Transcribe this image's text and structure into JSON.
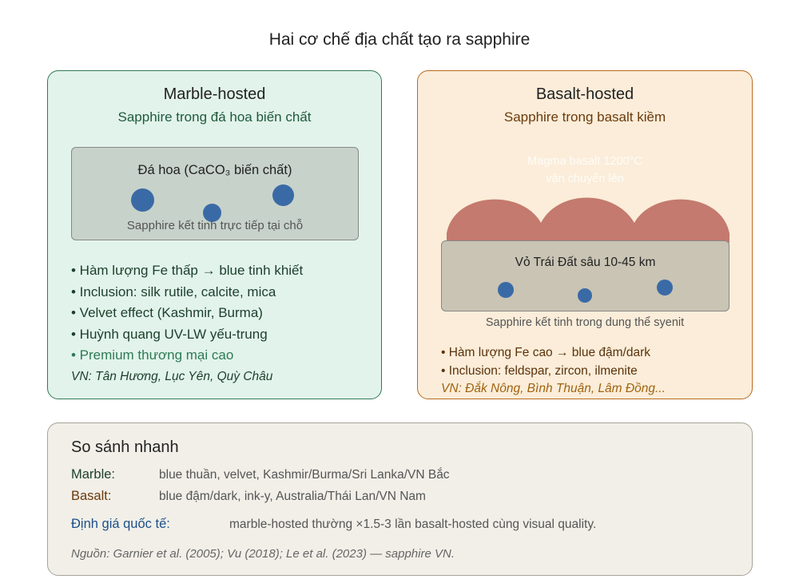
{
  "title": "Hai cơ chế địa chất tạo ra sapphire",
  "marble": {
    "title": "Marble-hosted",
    "subtitle": "Sapphire trong đá hoa biến chất",
    "rock_label": "Đá hoa (CaCO₃ biến chất)",
    "gem_caption": "Sapphire kết tinh trực tiếp tại chỗ",
    "bullets": [
      "• Hàm lượng Fe thấp → blue tinh khiết",
      "• Inclusion: silk rutile, calcite, mica",
      "• Velvet effect (Kashmir, Burma)",
      "• Huỳnh quang UV-LW yếu-trung",
      "• Premium thương mại cao"
    ],
    "locations": "VN: Tân Hương, Lục Yên, Quỳ Châu"
  },
  "basalt": {
    "title": "Basalt-hosted",
    "subtitle": "Sapphire trong basalt kiềm",
    "magma_label_1": "Magma basalt 1200°C",
    "magma_label_2": "vận chuyển lên",
    "rock_label": "Vỏ Trái Đất sâu 10-45 km",
    "gem_caption": "Sapphire kết tinh trong dung thể syenit",
    "bullets": [
      "• Hàm lượng Fe cao → blue đậm/dark",
      "• Inclusion: feldspar, zircon, ilmenite"
    ],
    "locations": "VN: Đắk Nông, Bình Thuận, Lâm Đồng..."
  },
  "compare": {
    "title": "So sánh nhanh",
    "marble_key": "Marble:",
    "marble_value": "blue thuần, velvet, Kashmir/Burma/Sri Lanka/VN Bắc",
    "basalt_key": "Basalt:",
    "basalt_value": "blue đậm/dark, ink-y, Australia/Thái Lan/VN Nam",
    "price_key": "Định giá quốc tế:",
    "price_value": "marble-hosted thường ×1.5-3 lần basalt-hosted cùng visual quality.",
    "source": "Nguồn: Garnier et al. (2005); Vu (2018); Le et al. (2023) — sapphire VN."
  },
  "colors": {
    "marble_accent": "#2f7a55",
    "basalt_accent": "#b86a1f",
    "gem": "#3a6aa6",
    "magma": "#c47a6e",
    "price_key": "#1d4f8a"
  }
}
